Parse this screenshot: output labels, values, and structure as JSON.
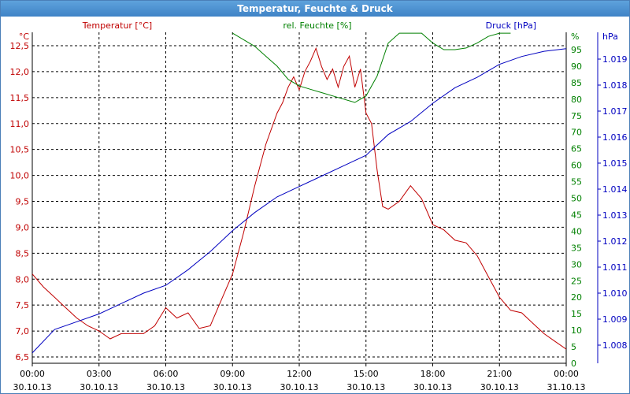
{
  "window": {
    "title": "Temperatur, Feuchte & Druck"
  },
  "colors": {
    "temperature": "#c00000",
    "humidity": "#008000",
    "pressure": "#0000c0",
    "grid": "#000000"
  },
  "chart_data": {
    "type": "line",
    "title": "Temperatur, Feuchte & Druck",
    "grid": true,
    "x_ticks": [
      {
        "time": "00:00",
        "date": "30.10.13"
      },
      {
        "time": "03:00",
        "date": "30.10.13"
      },
      {
        "time": "06:00",
        "date": "30.10.13"
      },
      {
        "time": "09:00",
        "date": "30.10.13"
      },
      {
        "time": "12:00",
        "date": "30.10.13"
      },
      {
        "time": "15:00",
        "date": "30.10.13"
      },
      {
        "time": "18:00",
        "date": "30.10.13"
      },
      {
        "time": "21:00",
        "date": "30.10.13"
      },
      {
        "time": "00:00",
        "date": "31.10.13"
      }
    ],
    "axes": {
      "temperature": {
        "label": "Temperatur [°C]",
        "unit": "°C",
        "range": [
          6.5,
          12.5
        ],
        "ticks": [
          "6,5",
          "7,0",
          "7,5",
          "8,0",
          "8,5",
          "9,0",
          "9,5",
          "10,0",
          "10,5",
          "11,0",
          "11,5",
          "12,0",
          "12,5"
        ]
      },
      "humidity": {
        "label": "rel. Feuchte [%]",
        "unit": "%",
        "range": [
          0,
          95
        ],
        "ticks": [
          "0",
          "5",
          "10",
          "15",
          "20",
          "25",
          "30",
          "35",
          "40",
          "45",
          "50",
          "55",
          "60",
          "65",
          "70",
          "75",
          "80",
          "85",
          "90",
          "95"
        ]
      },
      "pressure": {
        "label": "Druck [hPa]",
        "unit": "hPa",
        "range": [
          1.0074,
          1.0196
        ],
        "ticks": [
          "1.008",
          "1.009",
          "1.010",
          "1.011",
          "1.012",
          "1.013",
          "1.014",
          "1.015",
          "1.016",
          "1.017",
          "1.018",
          "1.019"
        ]
      }
    },
    "series": [
      {
        "name": "Temperatur [°C]",
        "axis": "temperature",
        "x": [
          0,
          0.5,
          1,
          1.5,
          2,
          2.5,
          3,
          3.5,
          4,
          4.5,
          5,
          5.5,
          6,
          6.5,
          7,
          7.5,
          8,
          8.5,
          9,
          9.5,
          10,
          10.5,
          11,
          11.25,
          11.5,
          11.75,
          12,
          12.25,
          12.5,
          12.75,
          13,
          13.25,
          13.5,
          13.75,
          14,
          14.25,
          14.5,
          14.75,
          15,
          15.25,
          15.5,
          15.75,
          16,
          16.5,
          17,
          17.5,
          18,
          18.5,
          19,
          19.5,
          20,
          20.5,
          21,
          21.5,
          22,
          22.5,
          23,
          23.5,
          24
        ],
        "y": [
          8.1,
          7.85,
          7.65,
          7.45,
          7.25,
          7.1,
          7.0,
          6.85,
          6.95,
          6.95,
          6.95,
          7.1,
          7.45,
          7.25,
          7.35,
          7.05,
          7.1,
          7.6,
          8.1,
          8.9,
          9.8,
          10.6,
          11.2,
          11.4,
          11.7,
          11.9,
          11.65,
          12.0,
          12.2,
          12.45,
          12.1,
          11.85,
          12.05,
          11.7,
          12.1,
          12.3,
          11.7,
          12.05,
          11.2,
          11.0,
          10.1,
          9.4,
          9.35,
          9.5,
          9.8,
          9.55,
          9.05,
          8.95,
          8.75,
          8.7,
          8.45,
          8.05,
          7.65,
          7.4,
          7.35,
          7.15,
          6.95,
          6.8,
          6.65
        ]
      },
      {
        "name": "rel. Feuchte [%]",
        "axis": "humidity",
        "x": [
          9,
          9.5,
          10,
          10.5,
          11,
          11.5,
          12,
          12.5,
          13,
          13.5,
          14,
          14.5,
          15,
          15.5,
          16,
          16.5,
          17,
          17.5,
          18,
          18.5,
          19,
          19.5,
          20,
          20.5,
          21,
          21.5
        ],
        "y": [
          100,
          98,
          96,
          93,
          90,
          86,
          84,
          83,
          82,
          81,
          80,
          79,
          81,
          87,
          97,
          100,
          100,
          100,
          97,
          95,
          95,
          95.5,
          97,
          99,
          100,
          100
        ]
      },
      {
        "name": "Druck [hPa]",
        "axis": "pressure",
        "x": [
          0,
          1,
          2,
          3,
          4,
          5,
          6,
          7,
          8,
          9,
          10,
          11,
          12,
          13,
          14,
          15,
          16,
          17,
          18,
          19,
          20,
          21,
          22,
          23,
          24
        ],
        "y": [
          1.0077,
          1.0086,
          1.0089,
          1.0092,
          1.0096,
          1.01,
          1.0103,
          1.0109,
          1.0116,
          1.0124,
          1.0131,
          1.0137,
          1.0141,
          1.0145,
          1.0149,
          1.0153,
          1.0161,
          1.0166,
          1.0173,
          1.0179,
          1.0183,
          1.0188,
          1.0191,
          1.0193,
          1.0194
        ]
      }
    ]
  }
}
